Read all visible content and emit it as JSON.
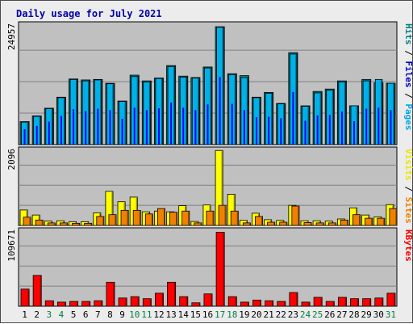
{
  "chart_data": {
    "type": "bar",
    "title": "Daily usage for July 2021",
    "days": [
      "1",
      "2",
      "3",
      "4",
      "5",
      "6",
      "7",
      "8",
      "9",
      "10",
      "11",
      "12",
      "13",
      "14",
      "15",
      "16",
      "17",
      "18",
      "19",
      "20",
      "21",
      "22",
      "23",
      "24",
      "25",
      "26",
      "27",
      "28",
      "29",
      "30",
      "31"
    ],
    "weekend_days": [
      "3",
      "4",
      "10",
      "11",
      "17",
      "18",
      "24",
      "25",
      "31"
    ],
    "panels": [
      {
        "name": "hits-files-pages",
        "ymax_label": "24957",
        "ylim": [
          0,
          24957
        ],
        "axis_labels": [
          {
            "text": "Hits",
            "color": "#008080"
          },
          {
            "text": " / ",
            "color": "#000000"
          },
          {
            "text": "Files",
            "color": "#0000c0"
          },
          {
            "text": " / ",
            "color": "#000000"
          },
          {
            "text": "Pages",
            "color": "#00a8e8"
          }
        ],
        "series": [
          {
            "name": "Hits",
            "color": "#008080",
            "values": [
              4800,
              6000,
              7600,
              9900,
              13700,
              13500,
              13600,
              12800,
              9100,
              14500,
              13300,
              13900,
              16500,
              14300,
              14000,
              16200,
              24600,
              14800,
              14400,
              9900,
              10900,
              8600,
              19200,
              8100,
              11100,
              11600,
              13300,
              8100,
              13600,
              12900,
              12800
            ]
          },
          {
            "name": "Files",
            "color": "#0000ff",
            "values": [
              3200,
              3900,
              4800,
              6000,
              7400,
              7000,
              7500,
              7200,
              5400,
              7700,
              7200,
              7600,
              8800,
              7700,
              7200,
              8400,
              14100,
              8500,
              7200,
              5700,
              5800,
              5500,
              11000,
              5000,
              6100,
              6200,
              6900,
              4900,
              7500,
              7700,
              7200
            ]
          },
          {
            "name": "Pages",
            "color": "#00b0e8",
            "values": [
              4700,
              5900,
              7500,
              9800,
              13600,
              13300,
              13500,
              12700,
              9000,
              14200,
              13100,
              13800,
              16300,
              14100,
              13900,
              16000,
              24500,
              14600,
              14000,
              9800,
              10700,
              8500,
              18900,
              8000,
              10800,
              11400,
              13100,
              8100,
              13300,
              13600,
              12800
            ]
          }
        ]
      },
      {
        "name": "visits-sites",
        "ymax_label": "2096",
        "ylim": [
          0,
          2096
        ],
        "axis_labels": [
          {
            "text": "Visits",
            "color": "#e8e800"
          },
          {
            "text": " / ",
            "color": "#000000"
          },
          {
            "text": "Sites",
            "color": "#f08000"
          }
        ],
        "series": [
          {
            "name": "Visits",
            "color": "#ffff00",
            "values": [
              430,
              290,
              120,
              130,
              105,
              105,
              350,
              950,
              660,
              790,
              380,
              400,
              380,
              550,
              110,
              570,
              2090,
              870,
              140,
              340,
              160,
              140,
              560,
              130,
              130,
              120,
              180,
              490,
              290,
              240,
              580
            ]
          },
          {
            "name": "Sites",
            "color": "#f08000",
            "values": [
              230,
              150,
              70,
              70,
              60,
              60,
              250,
              300,
              420,
              420,
              320,
              470,
              370,
              400,
              70,
              400,
              560,
              400,
              70,
              250,
              90,
              90,
              540,
              80,
              70,
              70,
              150,
              300,
              200,
              200,
              470
            ]
          }
        ]
      },
      {
        "name": "kbytes",
        "ymax_label": "109671",
        "ylim": [
          0,
          109671
        ],
        "axis_labels": [
          {
            "text": "KBytes",
            "color": "#ff0000"
          }
        ],
        "series": [
          {
            "name": "KBytes",
            "color": "#ff0000",
            "values": [
              25000,
              45000,
              8000,
              6000,
              7000,
              7000,
              8000,
              35000,
              12000,
              14000,
              11000,
              19000,
              35000,
              14000,
              5000,
              18000,
              108000,
              14000,
              6000,
              9000,
              8000,
              7000,
              20000,
              6000,
              13000,
              7000,
              13000,
              11000,
              11000,
              12000,
              19000
            ]
          }
        ]
      }
    ]
  }
}
